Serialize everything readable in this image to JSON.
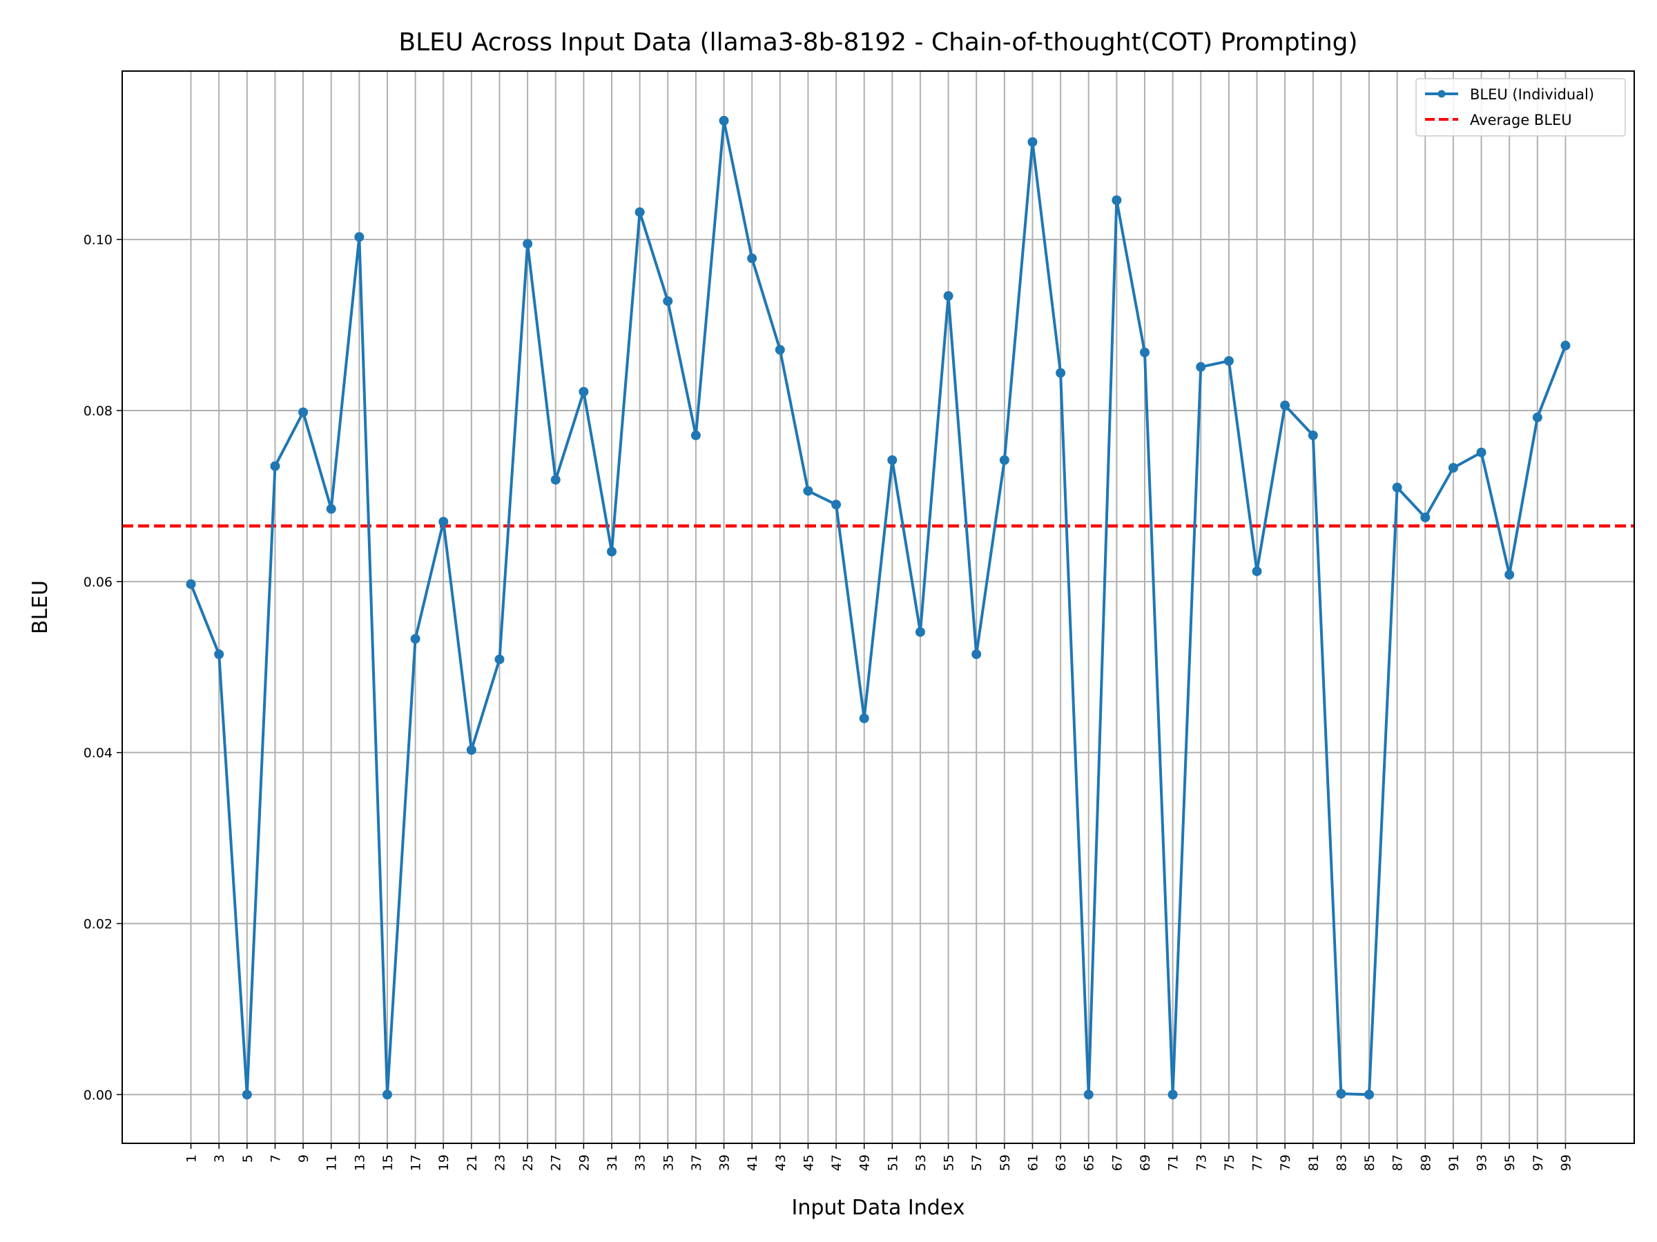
{
  "chart_data": {
    "type": "line",
    "title": "BLEU Across Input Data (llama3-8b-8192 - Chain-of-thought(COT) Prompting)",
    "xlabel": "Input Data Index",
    "ylabel": "BLEU",
    "x_ticks": [
      1,
      3,
      5,
      7,
      9,
      11,
      13,
      15,
      17,
      19,
      21,
      23,
      25,
      27,
      29,
      31,
      33,
      35,
      37,
      39,
      41,
      43,
      45,
      47,
      49,
      51,
      53,
      55,
      57,
      59,
      61,
      63,
      65,
      67,
      69,
      71,
      73,
      75,
      77,
      79,
      81,
      83,
      85,
      87,
      89,
      91,
      93,
      95,
      97,
      99
    ],
    "x_tick_labels": [
      "1",
      "3",
      "5",
      "7",
      "9",
      "11",
      "13",
      "15",
      "17",
      "19",
      "21",
      "23",
      "25",
      "27",
      "29",
      "31",
      "33",
      "35",
      "37",
      "39",
      "41",
      "43",
      "45",
      "47",
      "49",
      "51",
      "53",
      "55",
      "57",
      "59",
      "61",
      "63",
      "65",
      "67",
      "69",
      "71",
      "73",
      "75",
      "77",
      "79",
      "81",
      "83",
      "85",
      "87",
      "89",
      "91",
      "93",
      "95",
      "97",
      "99"
    ],
    "y_ticks": [
      0.0,
      0.02,
      0.04,
      0.06,
      0.08,
      0.1
    ],
    "y_tick_labels": [
      "0.00",
      "0.02",
      "0.04",
      "0.06",
      "0.08",
      "0.10"
    ],
    "xlim": [
      -3.9,
      103.9
    ],
    "ylim": [
      -0.0057,
      0.1197
    ],
    "grid": true,
    "legend_position": "top-right",
    "series": [
      {
        "name": "BLEU (Individual)",
        "color": "#1f77b4",
        "style": "solid-with-markers",
        "x": [
          1,
          3,
          5,
          7,
          9,
          11,
          13,
          15,
          17,
          19,
          21,
          23,
          25,
          27,
          29,
          31,
          33,
          35,
          37,
          39,
          41,
          43,
          45,
          47,
          49,
          51,
          53,
          55,
          57,
          59,
          61,
          63,
          65,
          67,
          69,
          71,
          73,
          75,
          77,
          79,
          81,
          83,
          85,
          87,
          89,
          91,
          93,
          95,
          97,
          99
        ],
        "values": [
          0.0597,
          0.0515,
          0.0,
          0.0735,
          0.0798,
          0.0685,
          0.1003,
          0.0,
          0.0533,
          0.067,
          0.0403,
          0.0509,
          0.0995,
          0.0719,
          0.0822,
          0.0635,
          0.1032,
          0.0928,
          0.0771,
          0.1139,
          0.0978,
          0.0871,
          0.0706,
          0.069,
          0.044,
          0.0742,
          0.0541,
          0.0934,
          0.0515,
          0.0742,
          0.1114,
          0.0844,
          0.0,
          0.1046,
          0.0868,
          0.0,
          0.0851,
          0.0858,
          0.0612,
          0.0806,
          0.0771,
          0.0001,
          0.0,
          0.071,
          0.0675,
          0.0733,
          0.0751,
          0.0608,
          0.0792,
          0.0876
        ]
      },
      {
        "name": "Average BLEU",
        "color": "#ff0000",
        "style": "dashed",
        "value": 0.0665
      }
    ]
  }
}
